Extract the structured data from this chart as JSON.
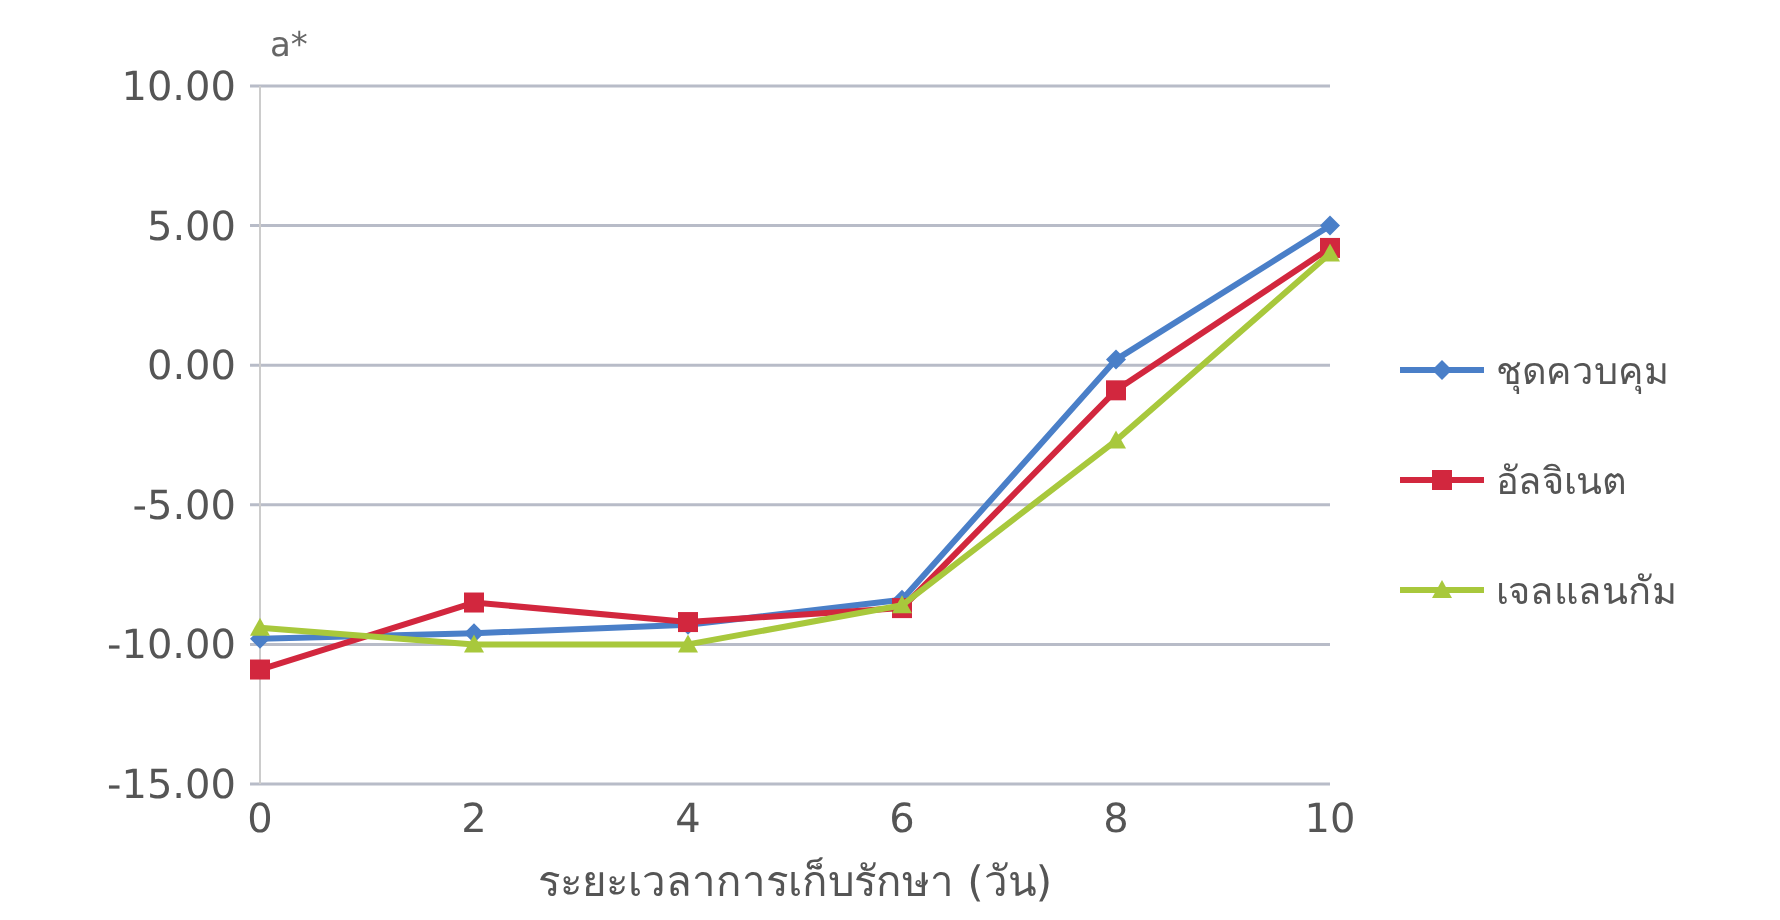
{
  "chart_data": {
    "type": "line",
    "ylabel": "a*",
    "xlabel": "ระยะเวลาการเก็บรักษา (วัน)",
    "categories": [
      "0",
      "2",
      "4",
      "6",
      "8",
      "10"
    ],
    "series": [
      {
        "name": "ชุดควบคุม",
        "color": "#4a7fc8",
        "marker": "diamond",
        "values": [
          -9.8,
          -9.6,
          -9.3,
          -8.4,
          0.2,
          5.0
        ]
      },
      {
        "name": "อัลจิเนต",
        "color": "#d2273e",
        "marker": "square",
        "values": [
          -10.9,
          -8.5,
          -9.2,
          -8.7,
          -0.9,
          4.2
        ]
      },
      {
        "name": "เจลแลนกัม",
        "color": "#a8c83c",
        "marker": "triangle",
        "values": [
          -9.4,
          -10.0,
          -10.0,
          -8.6,
          -2.7,
          4.0
        ]
      }
    ],
    "ylim": [
      -15,
      10
    ],
    "yticks": [
      {
        "value": -15,
        "label": "-15.00"
      },
      {
        "value": -10,
        "label": "-10.00"
      },
      {
        "value": -5,
        "label": "-5.00"
      },
      {
        "value": 0,
        "label": "0.00"
      },
      {
        "value": 5,
        "label": "5.00"
      },
      {
        "value": 10,
        "label": "10.00"
      }
    ],
    "grid": "y",
    "legend": "right"
  }
}
